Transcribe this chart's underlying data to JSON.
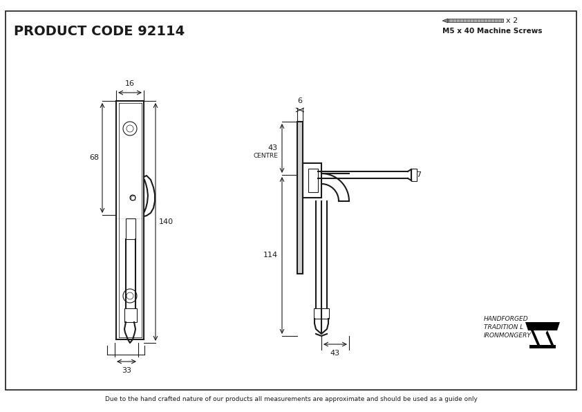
{
  "title": "PRODUCT CODE 92114",
  "footer": "Due to the hand crafted nature of our products all measurements are approximate and should be used as a guide only",
  "screw_label": "M5 x 40 Machine Screws",
  "screw_count": "x 2",
  "brand_line1": "HANDFORGED",
  "brand_line2": "TRADITION L",
  "brand_line3": "IRONMONGERY",
  "dim_16": "16",
  "dim_68": "68",
  "dim_140": "140",
  "dim_33": "33",
  "dim_6": "6",
  "dim_43a": "43",
  "dim_centre": "CENTRE",
  "dim_7": "7",
  "dim_114": "114",
  "dim_43b": "43",
  "bg_color": "#ffffff",
  "line_color": "#1a1a1a",
  "dim_color": "#1a1a1a",
  "border_color": "#1a1a1a"
}
